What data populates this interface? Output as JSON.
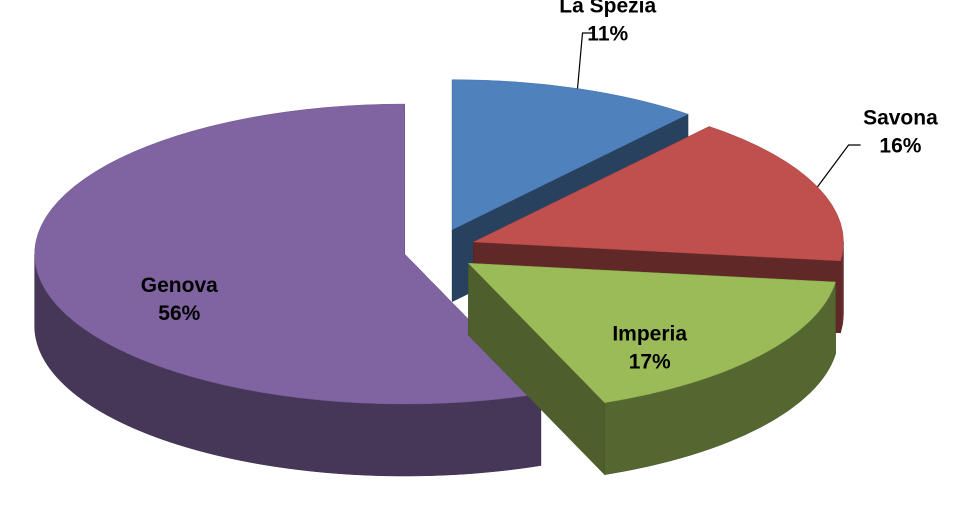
{
  "chart_data": {
    "type": "pie",
    "is_3d": true,
    "exploded": true,
    "categories": [
      "La Spezia",
      "Savona",
      "Imperia",
      "Genova"
    ],
    "values": [
      11,
      16,
      17,
      56
    ],
    "value_labels": [
      "11%",
      "16%",
      "17%",
      "56%"
    ],
    "colors": [
      "#4f81bd",
      "#c0504d",
      "#9bbb59",
      "#8064a2"
    ]
  }
}
